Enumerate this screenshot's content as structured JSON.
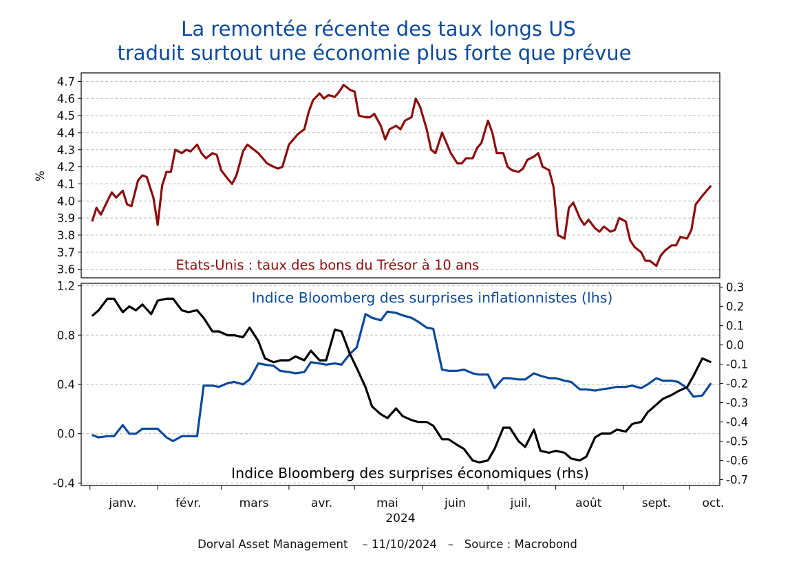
{
  "title": {
    "line1": "La remontée récente des taux longs US",
    "line2": "traduit surtout une économie plus forte que prévue"
  },
  "footer": "Dorval Asset Management    – 11/10/2024   –   Source : Macrobond",
  "colors": {
    "title": "#0b4a9b",
    "us10y": "#8b0d0d",
    "inflation": "#0b4a9b",
    "economic": "#000000"
  },
  "chart_data": [
    {
      "type": "line",
      "title": "",
      "ylabel": "%",
      "ylim": [
        3.55,
        4.75
      ],
      "yticks": [
        "3.6",
        "3.7",
        "3.8",
        "3.9",
        "4.0",
        "4.1",
        "4.2",
        "4.3",
        "4.4",
        "4.5",
        "4.6",
        "4.7"
      ],
      "grid": true,
      "series": [
        {
          "name": "Etats-Unis : taux des bons du Trésor à 10 ans",
          "color": "#8b0d0d",
          "x": [
            "2024-01-02",
            "2024-01-04",
            "2024-01-06",
            "2024-01-09",
            "2024-01-11",
            "2024-01-13",
            "2024-01-16",
            "2024-01-18",
            "2024-01-20",
            "2024-01-23",
            "2024-01-25",
            "2024-01-27",
            "2024-01-30",
            "2024-02-01",
            "2024-02-03",
            "2024-02-05",
            "2024-02-07",
            "2024-02-09",
            "2024-02-12",
            "2024-02-14",
            "2024-02-16",
            "2024-02-19",
            "2024-02-21",
            "2024-02-23",
            "2024-02-26",
            "2024-02-28",
            "2024-03-01",
            "2024-03-04",
            "2024-03-06",
            "2024-03-08",
            "2024-03-11",
            "2024-03-13",
            "2024-03-15",
            "2024-03-18",
            "2024-03-20",
            "2024-03-22",
            "2024-03-25",
            "2024-03-27",
            "2024-03-29",
            "2024-04-01",
            "2024-04-03",
            "2024-04-05",
            "2024-04-08",
            "2024-04-10",
            "2024-04-12",
            "2024-04-15",
            "2024-04-17",
            "2024-04-19",
            "2024-04-22",
            "2024-04-24",
            "2024-04-26",
            "2024-04-29",
            "2024-05-01",
            "2024-05-03",
            "2024-05-06",
            "2024-05-08",
            "2024-05-10",
            "2024-05-13",
            "2024-05-15",
            "2024-05-17",
            "2024-05-20",
            "2024-05-22",
            "2024-05-24",
            "2024-05-27",
            "2024-05-29",
            "2024-05-31",
            "2024-06-03",
            "2024-06-05",
            "2024-06-07",
            "2024-06-10",
            "2024-06-12",
            "2024-06-14",
            "2024-06-17",
            "2024-06-19",
            "2024-06-21",
            "2024-06-24",
            "2024-06-26",
            "2024-06-28",
            "2024-07-01",
            "2024-07-03",
            "2024-07-05",
            "2024-07-08",
            "2024-07-10",
            "2024-07-12",
            "2024-07-15",
            "2024-07-17",
            "2024-07-19",
            "2024-07-22",
            "2024-07-24",
            "2024-07-26",
            "2024-07-29",
            "2024-07-31",
            "2024-08-02",
            "2024-08-05",
            "2024-08-07",
            "2024-08-09",
            "2024-08-12",
            "2024-08-14",
            "2024-08-16",
            "2024-08-19",
            "2024-08-21",
            "2024-08-23",
            "2024-08-26",
            "2024-08-28",
            "2024-08-30",
            "2024-09-02",
            "2024-09-04",
            "2024-09-06",
            "2024-09-09",
            "2024-09-11",
            "2024-09-13",
            "2024-09-16",
            "2024-09-18",
            "2024-09-20",
            "2024-09-23",
            "2024-09-25",
            "2024-09-27",
            "2024-09-30",
            "2024-10-02",
            "2024-10-04",
            "2024-10-07",
            "2024-10-09",
            "2024-10-11"
          ],
          "y": [
            3.88,
            3.96,
            3.92,
            4.0,
            4.05,
            4.02,
            4.06,
            3.98,
            3.97,
            4.12,
            4.15,
            4.14,
            4.02,
            3.86,
            4.09,
            4.17,
            4.17,
            4.3,
            4.28,
            4.3,
            4.29,
            4.33,
            4.28,
            4.25,
            4.28,
            4.27,
            4.18,
            4.13,
            4.1,
            4.15,
            4.29,
            4.33,
            4.31,
            4.28,
            4.25,
            4.22,
            4.2,
            4.19,
            4.2,
            4.33,
            4.36,
            4.39,
            4.42,
            4.52,
            4.59,
            4.63,
            4.6,
            4.62,
            4.61,
            4.64,
            4.68,
            4.65,
            4.64,
            4.5,
            4.49,
            4.49,
            4.51,
            4.44,
            4.36,
            4.42,
            4.44,
            4.42,
            4.47,
            4.49,
            4.6,
            4.55,
            4.42,
            4.3,
            4.28,
            4.4,
            4.34,
            4.28,
            4.22,
            4.22,
            4.25,
            4.25,
            4.31,
            4.34,
            4.47,
            4.4,
            4.28,
            4.28,
            4.2,
            4.18,
            4.17,
            4.19,
            4.24,
            4.26,
            4.28,
            4.2,
            4.18,
            4.08,
            3.8,
            3.78,
            3.96,
            3.99,
            3.9,
            3.86,
            3.89,
            3.84,
            3.82,
            3.85,
            3.82,
            3.83,
            3.9,
            3.88,
            3.77,
            3.73,
            3.7,
            3.65,
            3.65,
            3.62,
            3.68,
            3.71,
            3.74,
            3.74,
            3.79,
            3.78,
            3.83,
            3.98,
            4.03,
            4.06,
            4.09
          ]
        }
      ]
    },
    {
      "type": "line",
      "title": "",
      "ylim_left": [
        -0.42,
        1.22
      ],
      "yticks_left": [
        "-0.4",
        "0.0",
        "0.4",
        "0.8",
        "1.2"
      ],
      "ylim_right": [
        -0.73,
        0.32
      ],
      "yticks_right": [
        "-0.7",
        "-0.6",
        "-0.5",
        "-0.4",
        "-0.3",
        "-0.2",
        "-0.1",
        "0.0",
        "0.1",
        "0.2",
        "0.3"
      ],
      "xlabel": "2024",
      "xticks": [
        "janv.",
        "févr.",
        "mars",
        "avr.",
        "mai",
        "juin",
        "juil.",
        "août",
        "sept.",
        "oct."
      ],
      "grid": true,
      "series": [
        {
          "name": "Indice Bloomberg des surprises inflationnistes (lhs)",
          "axis": "left",
          "color": "#0b4a9b",
          "x": [
            "2024-01-02",
            "2024-01-05",
            "2024-01-09",
            "2024-01-12",
            "2024-01-16",
            "2024-01-19",
            "2024-01-22",
            "2024-01-25",
            "2024-01-29",
            "2024-02-01",
            "2024-02-05",
            "2024-02-08",
            "2024-02-12",
            "2024-02-15",
            "2024-02-19",
            "2024-02-22",
            "2024-02-26",
            "2024-02-29",
            "2024-03-04",
            "2024-03-07",
            "2024-03-11",
            "2024-03-14",
            "2024-03-18",
            "2024-03-21",
            "2024-03-25",
            "2024-03-28",
            "2024-04-01",
            "2024-04-04",
            "2024-04-08",
            "2024-04-11",
            "2024-04-15",
            "2024-04-18",
            "2024-04-22",
            "2024-04-25",
            "2024-04-29",
            "2024-05-02",
            "2024-05-06",
            "2024-05-09",
            "2024-05-13",
            "2024-05-16",
            "2024-05-20",
            "2024-05-23",
            "2024-05-27",
            "2024-05-30",
            "2024-06-03",
            "2024-06-06",
            "2024-06-10",
            "2024-06-13",
            "2024-06-17",
            "2024-06-20",
            "2024-06-24",
            "2024-06-27",
            "2024-07-01",
            "2024-07-04",
            "2024-07-08",
            "2024-07-11",
            "2024-07-15",
            "2024-07-18",
            "2024-07-22",
            "2024-07-25",
            "2024-07-29",
            "2024-08-01",
            "2024-08-05",
            "2024-08-08",
            "2024-08-12",
            "2024-08-15",
            "2024-08-19",
            "2024-08-22",
            "2024-08-26",
            "2024-08-29",
            "2024-09-02",
            "2024-09-05",
            "2024-09-09",
            "2024-09-12",
            "2024-09-16",
            "2024-09-19",
            "2024-09-23",
            "2024-09-26",
            "2024-09-30",
            "2024-10-03",
            "2024-10-07",
            "2024-10-11"
          ],
          "y": [
            -0.01,
            -0.03,
            -0.02,
            -0.02,
            0.07,
            0.0,
            0.0,
            0.04,
            0.04,
            0.04,
            -0.03,
            -0.06,
            -0.02,
            -0.02,
            -0.02,
            0.39,
            0.39,
            0.38,
            0.41,
            0.42,
            0.4,
            0.44,
            0.57,
            0.56,
            0.55,
            0.51,
            0.5,
            0.49,
            0.5,
            0.58,
            0.57,
            0.56,
            0.57,
            0.56,
            0.65,
            0.7,
            0.97,
            0.94,
            0.92,
            0.99,
            0.98,
            0.96,
            0.94,
            0.91,
            0.86,
            0.85,
            0.52,
            0.51,
            0.51,
            0.52,
            0.49,
            0.48,
            0.48,
            0.37,
            0.45,
            0.45,
            0.44,
            0.44,
            0.49,
            0.47,
            0.45,
            0.45,
            0.43,
            0.42,
            0.36,
            0.36,
            0.35,
            0.36,
            0.37,
            0.38,
            0.38,
            0.39,
            0.37,
            0.4,
            0.45,
            0.43,
            0.43,
            0.42,
            0.37,
            0.3,
            0.31,
            0.41
          ]
        },
        {
          "name": "Indice Bloomberg des surprises économiques (rhs)",
          "axis": "right",
          "color": "#000000",
          "x": [
            "2024-01-02",
            "2024-01-05",
            "2024-01-09",
            "2024-01-12",
            "2024-01-16",
            "2024-01-19",
            "2024-01-22",
            "2024-01-25",
            "2024-01-29",
            "2024-02-01",
            "2024-02-05",
            "2024-02-08",
            "2024-02-12",
            "2024-02-15",
            "2024-02-19",
            "2024-02-22",
            "2024-02-26",
            "2024-02-29",
            "2024-03-04",
            "2024-03-07",
            "2024-03-11",
            "2024-03-14",
            "2024-03-18",
            "2024-03-21",
            "2024-03-25",
            "2024-03-28",
            "2024-04-01",
            "2024-04-04",
            "2024-04-08",
            "2024-04-11",
            "2024-04-15",
            "2024-04-18",
            "2024-04-22",
            "2024-04-25",
            "2024-04-29",
            "2024-05-02",
            "2024-05-06",
            "2024-05-09",
            "2024-05-13",
            "2024-05-16",
            "2024-05-20",
            "2024-05-23",
            "2024-05-27",
            "2024-05-30",
            "2024-06-03",
            "2024-06-06",
            "2024-06-10",
            "2024-06-13",
            "2024-06-17",
            "2024-06-20",
            "2024-06-24",
            "2024-06-27",
            "2024-07-01",
            "2024-07-04",
            "2024-07-08",
            "2024-07-11",
            "2024-07-15",
            "2024-07-18",
            "2024-07-22",
            "2024-07-25",
            "2024-07-29",
            "2024-08-01",
            "2024-08-05",
            "2024-08-08",
            "2024-08-12",
            "2024-08-15",
            "2024-08-19",
            "2024-08-22",
            "2024-08-26",
            "2024-08-29",
            "2024-09-02",
            "2024-09-05",
            "2024-09-09",
            "2024-09-12",
            "2024-09-16",
            "2024-09-19",
            "2024-09-23",
            "2024-09-26",
            "2024-09-30",
            "2024-10-03",
            "2024-10-07",
            "2024-10-11"
          ],
          "y": [
            0.15,
            0.18,
            0.24,
            0.24,
            0.17,
            0.2,
            0.18,
            0.21,
            0.16,
            0.23,
            0.24,
            0.24,
            0.18,
            0.17,
            0.18,
            0.14,
            0.07,
            0.07,
            0.05,
            0.05,
            0.04,
            0.09,
            0.02,
            -0.07,
            -0.09,
            -0.08,
            -0.08,
            -0.06,
            -0.08,
            -0.03,
            -0.08,
            -0.08,
            0.08,
            0.07,
            -0.05,
            -0.12,
            -0.22,
            -0.32,
            -0.36,
            -0.38,
            -0.33,
            -0.37,
            -0.39,
            -0.4,
            -0.4,
            -0.42,
            -0.49,
            -0.49,
            -0.52,
            -0.54,
            -0.6,
            -0.61,
            -0.6,
            -0.54,
            -0.43,
            -0.43,
            -0.5,
            -0.53,
            -0.44,
            -0.55,
            -0.56,
            -0.55,
            -0.56,
            -0.59,
            -0.6,
            -0.58,
            -0.48,
            -0.46,
            -0.46,
            -0.44,
            -0.45,
            -0.41,
            -0.4,
            -0.35,
            -0.31,
            -0.28,
            -0.26,
            -0.24,
            -0.22,
            -0.16,
            -0.07,
            -0.09
          ]
        }
      ]
    }
  ],
  "labels": {
    "us10y": "Etats-Unis : taux des bons du Trésor à 10 ans",
    "inflation": "Indice Bloomberg des surprises inflationnistes (lhs)",
    "economic": "Indice Bloomberg des surprises économiques (rhs)"
  }
}
